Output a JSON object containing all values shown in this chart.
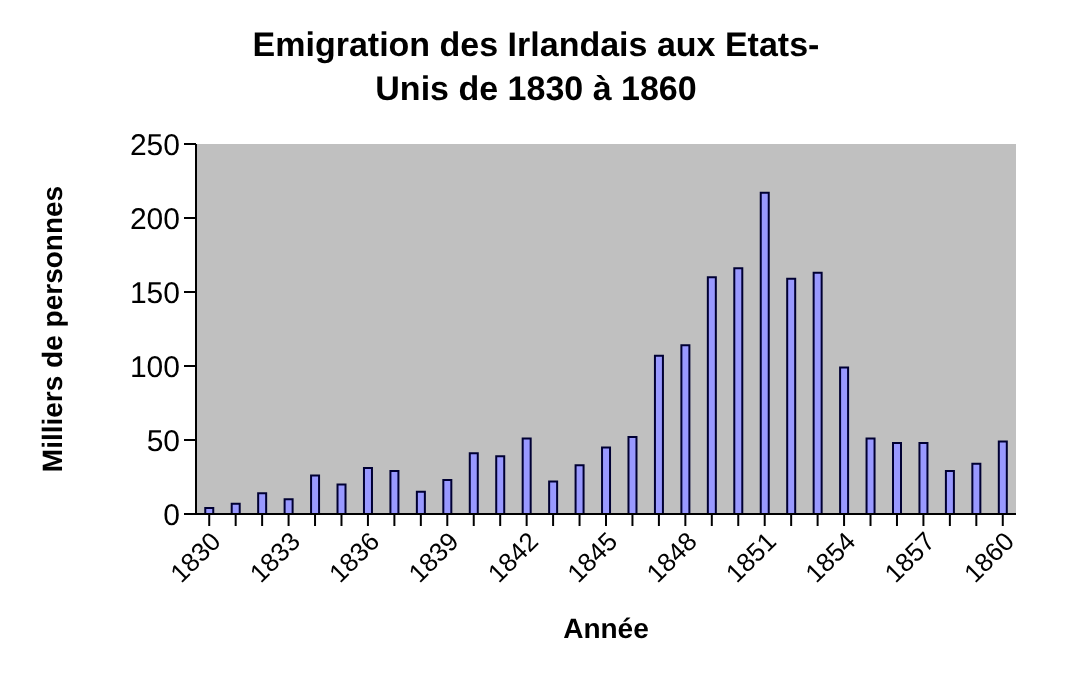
{
  "chart_data": {
    "type": "bar",
    "title": "Emigration des Irlandais aux Etats-Unis de 1830 à 1860",
    "xlabel": "Année",
    "ylabel": "Milliers de personnes",
    "categories": [
      "1830",
      null,
      null,
      "1833",
      null,
      null,
      "1836",
      null,
      null,
      "1839",
      null,
      null,
      "1842",
      null,
      null,
      "1845",
      null,
      null,
      "1848",
      null,
      null,
      "1851",
      null,
      null,
      "1854",
      null,
      null,
      "1857",
      null,
      null,
      "1860"
    ],
    "values": [
      4,
      7,
      14,
      10,
      26,
      20,
      31,
      29,
      15,
      23,
      41,
      39,
      51,
      22,
      33,
      45,
      52,
      107,
      114,
      160,
      166,
      217,
      159,
      163,
      99,
      51,
      48,
      48,
      29,
      34,
      49
    ],
    "color": "#9999ff",
    "ylim": [
      0,
      250
    ],
    "yticks": [
      0,
      50,
      100,
      150,
      200,
      250
    ]
  }
}
